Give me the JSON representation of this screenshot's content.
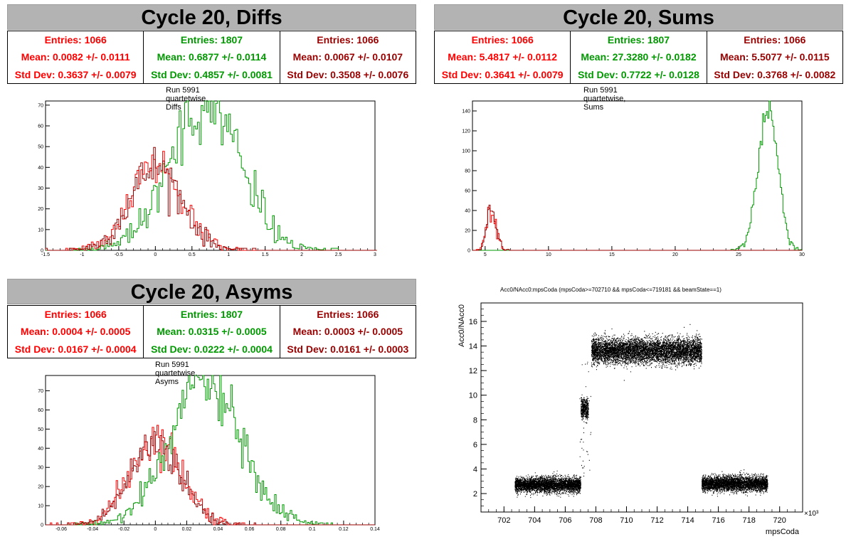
{
  "panels": [
    {
      "title": "Cycle 20, Diffs",
      "caption": "Run 5991 quartetwise, Diffs",
      "stats": [
        {
          "entries": "Entries: 1066",
          "mean": "Mean: 0.0082 +/- 0.0111",
          "std": "Std Dev: 0.3637 +/- 0.0079",
          "color": "#ff0000"
        },
        {
          "entries": "Entries: 1807",
          "mean": "Mean: 0.6877 +/- 0.0114",
          "std": "Std Dev: 0.4857 +/- 0.0081",
          "color": "#009900"
        },
        {
          "entries": "Entries: 1066",
          "mean": "Mean: 0.0067 +/- 0.0107",
          "std": "Std Dev: 0.3508 +/- 0.0076",
          "color": "#990000"
        }
      ]
    },
    {
      "title": "Cycle 20, Sums",
      "caption": "Run 5991 quartetwise, Sums",
      "stats": [
        {
          "entries": "Entries: 1066",
          "mean": "Mean: 5.4817 +/- 0.0112",
          "std": "Std Dev: 0.3641 +/- 0.0079",
          "color": "#ff0000"
        },
        {
          "entries": "Entries: 1807",
          "mean": "Mean: 27.3280 +/- 0.0182",
          "std": "Std Dev: 0.7722 +/- 0.0128",
          "color": "#009900"
        },
        {
          "entries": "Entries: 1066",
          "mean": "Mean: 5.5077 +/- 0.0115",
          "std": "Std Dev: 0.3768 +/- 0.0082",
          "color": "#990000"
        }
      ]
    },
    {
      "title": "Cycle 20, Asyms",
      "caption": "Run 5991 quartetwise, Asyms",
      "stats": [
        {
          "entries": "Entries: 1066",
          "mean": "Mean: 0.0004 +/- 0.0005",
          "std": "Std Dev: 0.0167 +/- 0.0004",
          "color": "#ff0000"
        },
        {
          "entries": "Entries: 1807",
          "mean": "Mean: 0.0315 +/- 0.0005",
          "std": "Std Dev: 0.0222 +/- 0.0004",
          "color": "#009900"
        },
        {
          "entries": "Entries: 1066",
          "mean": "Mean: 0.0003 +/- 0.0005",
          "std": "Std Dev: 0.0161 +/- 0.0003",
          "color": "#990000"
        }
      ]
    }
  ],
  "scatter_title": "Acc0/NAcc0:mpsCoda (mpsCoda>=702710 && mpsCoda<=719181 && beamState==1)",
  "chart_data": [
    {
      "type": "histogram",
      "title": "Run 5991 quartetwise, Diffs",
      "xlim": [
        -1.5,
        3
      ],
      "ylim": [
        0,
        72
      ],
      "xticks": [
        -1.5,
        -1,
        -0.5,
        0,
        0.5,
        1,
        1.5,
        2,
        2.5,
        3
      ],
      "xtick_labels": [
        "-1.5",
        "-1",
        "-0.5",
        "0",
        "0.5",
        "1",
        "1.5",
        "2",
        "2.5",
        "3"
      ],
      "yticks": [
        0,
        10,
        20,
        30,
        40,
        50,
        60,
        70
      ],
      "series": [
        {
          "color": "#ff0000",
          "mean": 0.0082,
          "std": 0.3637,
          "entries": 1066,
          "peak": 42,
          "binwidth": 0.025
        },
        {
          "color": "#009900",
          "mean": 0.6877,
          "std": 0.4857,
          "entries": 1807,
          "peak": 70,
          "binwidth": 0.025
        },
        {
          "color": "#990000",
          "mean": 0.0067,
          "std": 0.3508,
          "entries": 1066,
          "peak": 40,
          "binwidth": 0.025
        }
      ]
    },
    {
      "type": "histogram",
      "title": "Run 5991 quartetwise, Sums",
      "xlim": [
        4,
        30
      ],
      "ylim": [
        0,
        150
      ],
      "xticks": [
        5,
        10,
        15,
        20,
        25,
        30
      ],
      "xtick_labels": [
        "5",
        "10",
        "15",
        "20",
        "25",
        "30"
      ],
      "yticks": [
        0,
        20,
        40,
        60,
        80,
        100,
        120,
        140
      ],
      "series": [
        {
          "color": "#ff0000",
          "mean": 5.4817,
          "std": 0.3641,
          "entries": 1066,
          "peak": 40,
          "binwidth": 0.1
        },
        {
          "color": "#009900",
          "mean": 27.328,
          "std": 0.7722,
          "entries": 1807,
          "peak": 145,
          "binwidth": 0.1
        },
        {
          "color": "#990000",
          "mean": 5.5077,
          "std": 0.3768,
          "entries": 1066,
          "peak": 42,
          "binwidth": 0.1
        }
      ]
    },
    {
      "type": "histogram",
      "title": "Run 5991 quartetwise, Asyms",
      "xlim": [
        -0.07,
        0.14
      ],
      "ylim": [
        0,
        78
      ],
      "xticks": [
        -0.06,
        -0.04,
        -0.02,
        0,
        0.02,
        0.04,
        0.06,
        0.08,
        0.1,
        0.12,
        0.14
      ],
      "xtick_labels": [
        "-0.06",
        "-0.04",
        "-0.02",
        "0",
        "0.02",
        "0.04",
        "0.06",
        "0.08",
        "0.1",
        "0.12",
        "0.14"
      ],
      "yticks": [
        0,
        10,
        20,
        30,
        40,
        50,
        60,
        70
      ],
      "series": [
        {
          "color": "#ff0000",
          "mean": 0.0004,
          "std": 0.0167,
          "entries": 1066,
          "peak": 45,
          "binwidth": 0.001
        },
        {
          "color": "#009900",
          "mean": 0.0315,
          "std": 0.0222,
          "entries": 1807,
          "peak": 75,
          "binwidth": 0.001
        },
        {
          "color": "#990000",
          "mean": 0.0003,
          "std": 0.0161,
          "entries": 1066,
          "peak": 43,
          "binwidth": 0.001
        }
      ]
    },
    {
      "type": "scatter",
      "title": "Acc0/NAcc0:mpsCoda (mpsCoda>=702710 && mpsCoda<=719181 && beamState==1)",
      "xlabel": "mpsCoda",
      "ylabel": "Acc0/NAcc0",
      "x_multiplier": "×10³",
      "xlim": [
        700.5,
        721.5
      ],
      "ylim": [
        0.5,
        17.5
      ],
      "xticks": [
        702,
        704,
        706,
        708,
        710,
        712,
        714,
        716,
        718,
        720
      ],
      "yticks": [
        2,
        4,
        6,
        8,
        10,
        12,
        14,
        16
      ],
      "clusters": [
        {
          "x_from": 702.7,
          "x_to": 707.0,
          "y_center": 2.7,
          "y_spread": 0.3
        },
        {
          "x_from": 707.0,
          "x_to": 707.35,
          "y_center": 0.0,
          "y_spread": 0.0,
          "note": "transition"
        },
        {
          "x_from": 707.0,
          "x_to": 707.5,
          "y_center": 8.9,
          "y_spread": 0.4
        },
        {
          "x_from": 707.7,
          "x_to": 714.9,
          "y_center": 13.6,
          "y_spread": 0.5
        },
        {
          "x_from": 714.9,
          "x_to": 719.2,
          "y_center": 2.8,
          "y_spread": 0.3
        }
      ]
    }
  ]
}
